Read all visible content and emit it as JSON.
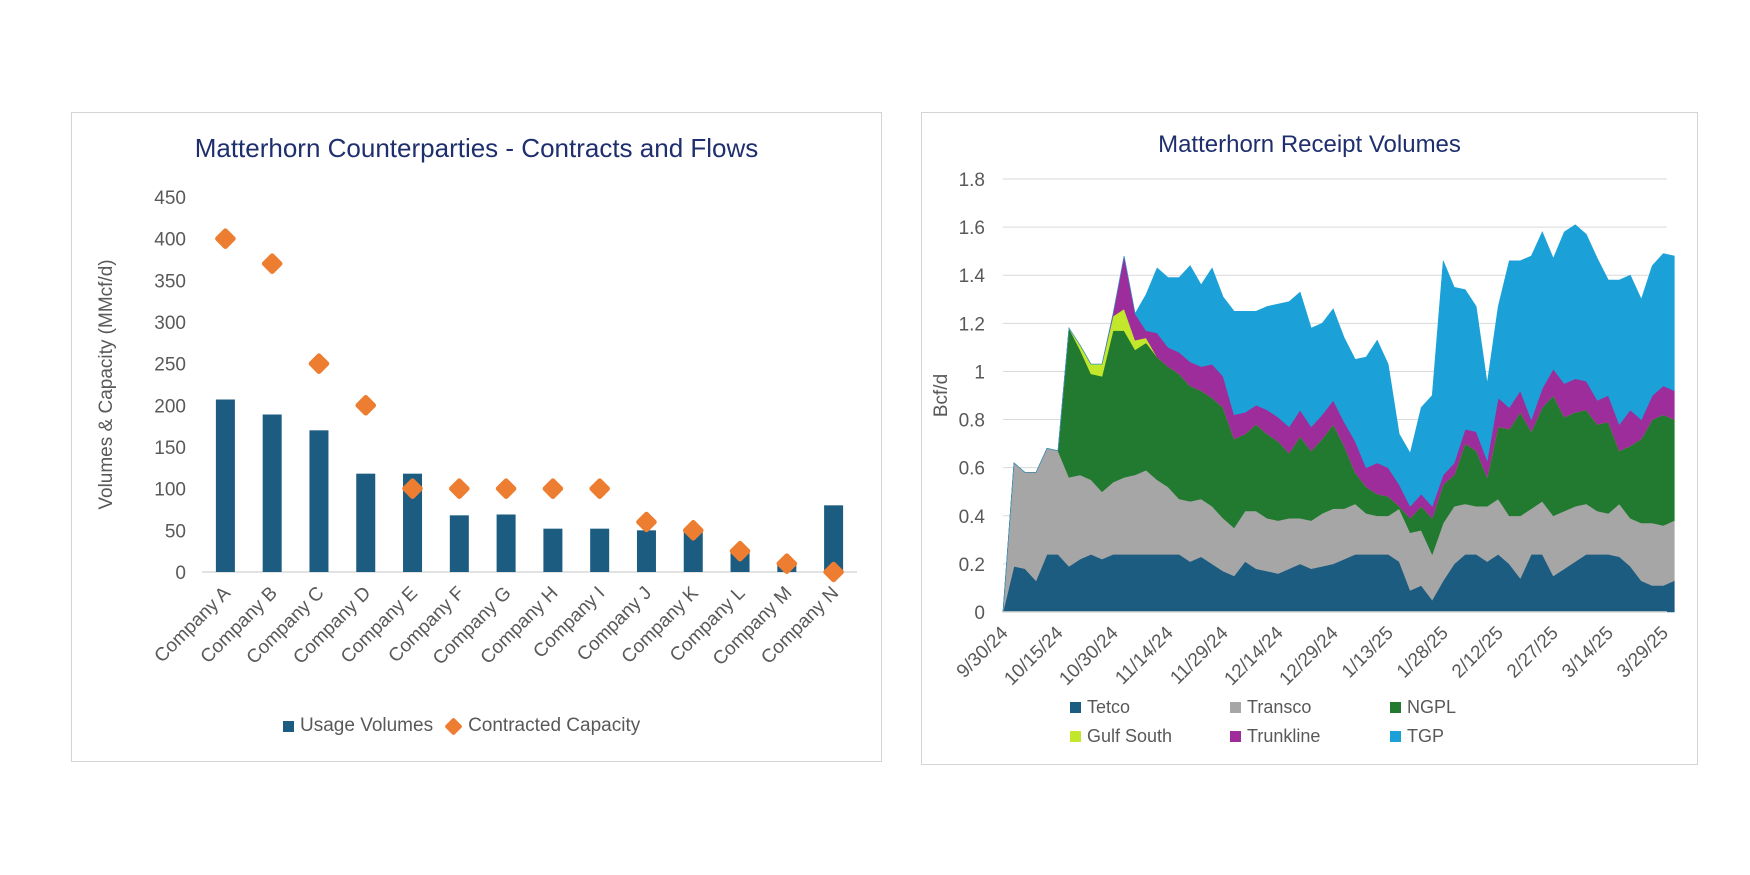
{
  "charts": {
    "left": {
      "title": "Matterhorn Counterparties - Contracts and Flows"
    },
    "right": {
      "title": "Matterhorn Receipt Volumes"
    }
  },
  "colors": {
    "usage": "#1b5c80",
    "contracted": "#ed7d31",
    "Tetco": "#1b5c80",
    "Transco": "#a6a6a6",
    "NGPL": "#217a2f",
    "Gulf South": "#c3e82b",
    "Trunkline": "#9c2d9b",
    "TGP": "#1ba1d8",
    "grid": "#d9d9d9",
    "title": "#1f2f6e"
  },
  "chart_data": [
    {
      "type": "bar",
      "title": "Matterhorn Counterparties - Contracts and Flows",
      "ylabel": "Volumes & Capacity  (MMcf/d)",
      "xlabel": "",
      "ylim": [
        0,
        450
      ],
      "yticks": [
        0,
        50,
        100,
        150,
        200,
        250,
        300,
        350,
        400,
        450
      ],
      "grid": false,
      "legend_position": "bottom",
      "categories": [
        "Company A",
        "Company B",
        "Company C",
        "Company D",
        "Company E",
        "Company F",
        "Company G",
        "Company H",
        "Company I",
        "Company J",
        "Company K",
        "Company L",
        "Company M",
        "Company N"
      ],
      "series": [
        {
          "name": "Usage Volumes",
          "kind": "bar",
          "values": [
            207,
            189,
            170,
            118,
            118,
            68,
            69,
            52,
            52,
            50,
            51,
            24,
            12,
            80
          ]
        },
        {
          "name": "Contracted Capacity",
          "kind": "marker-diamond",
          "values": [
            400,
            370,
            250,
            200,
            100,
            100,
            100,
            100,
            100,
            60,
            50,
            25,
            10,
            0
          ]
        }
      ]
    },
    {
      "type": "area",
      "stacked": true,
      "title": "Matterhorn Receipt Volumes",
      "ylabel": "Bcf/d",
      "xlabel": "",
      "ylim": [
        0,
        1.8
      ],
      "yticks": [
        "0",
        "0.2",
        "0.4",
        "0.6",
        "0.8",
        "1",
        "1.2",
        "1.4",
        "1.6",
        "1.8"
      ],
      "grid": true,
      "legend_position": "bottom",
      "x_tick_labels": [
        "9/30/24",
        "10/15/24",
        "10/30/24",
        "11/14/24",
        "11/29/24",
        "12/14/24",
        "12/29/24",
        "1/13/25",
        "1/28/25",
        "2/12/25",
        "2/27/25",
        "3/14/25",
        "3/29/25"
      ],
      "x_range": [
        "2024-09-30",
        "2025-03-30"
      ],
      "sample_interval_days": 3,
      "series": [
        {
          "name": "Tetco",
          "values": [
            0.0,
            0.19,
            0.18,
            0.13,
            0.24,
            0.24,
            0.19,
            0.22,
            0.24,
            0.22,
            0.24,
            0.24,
            0.24,
            0.24,
            0.24,
            0.24,
            0.24,
            0.21,
            0.23,
            0.2,
            0.17,
            0.15,
            0.21,
            0.18,
            0.17,
            0.16,
            0.18,
            0.2,
            0.18,
            0.19,
            0.2,
            0.22,
            0.24,
            0.24,
            0.24,
            0.24,
            0.21,
            0.09,
            0.11,
            0.05,
            0.13,
            0.2,
            0.24,
            0.24,
            0.21,
            0.24,
            0.2,
            0.14,
            0.24,
            0.24,
            0.15,
            0.18,
            0.21,
            0.24,
            0.24,
            0.24,
            0.23,
            0.19,
            0.13,
            0.11,
            0.11,
            0.13
          ]
        },
        {
          "name": "Transco",
          "values": [
            0.0,
            0.43,
            0.4,
            0.45,
            0.44,
            0.43,
            0.37,
            0.35,
            0.31,
            0.28,
            0.3,
            0.32,
            0.33,
            0.35,
            0.31,
            0.28,
            0.23,
            0.25,
            0.24,
            0.24,
            0.22,
            0.2,
            0.21,
            0.24,
            0.22,
            0.22,
            0.21,
            0.19,
            0.2,
            0.22,
            0.23,
            0.21,
            0.21,
            0.17,
            0.16,
            0.16,
            0.22,
            0.24,
            0.23,
            0.19,
            0.24,
            0.24,
            0.21,
            0.2,
            0.23,
            0.23,
            0.2,
            0.26,
            0.19,
            0.22,
            0.25,
            0.24,
            0.23,
            0.21,
            0.18,
            0.17,
            0.22,
            0.2,
            0.24,
            0.26,
            0.25,
            0.25
          ]
        },
        {
          "name": "NGPL",
          "values": [
            0.0,
            0.0,
            0.0,
            0.0,
            0.0,
            0.0,
            0.62,
            0.52,
            0.44,
            0.48,
            0.63,
            0.61,
            0.52,
            0.53,
            0.51,
            0.5,
            0.52,
            0.48,
            0.45,
            0.45,
            0.46,
            0.37,
            0.32,
            0.36,
            0.35,
            0.33,
            0.27,
            0.34,
            0.29,
            0.31,
            0.35,
            0.26,
            0.13,
            0.11,
            0.09,
            0.08,
            0.01,
            0.06,
            0.1,
            0.15,
            0.16,
            0.13,
            0.25,
            0.23,
            0.12,
            0.3,
            0.36,
            0.43,
            0.32,
            0.39,
            0.5,
            0.39,
            0.39,
            0.39,
            0.36,
            0.38,
            0.22,
            0.3,
            0.35,
            0.43,
            0.46,
            0.42
          ]
        },
        {
          "name": "Gulf South",
          "values": [
            0,
            0,
            0,
            0,
            0,
            0,
            0,
            0.02,
            0.04,
            0.05,
            0.06,
            0.09,
            0.04,
            0.02,
            0,
            0,
            0,
            0,
            0,
            0,
            0,
            0,
            0,
            0,
            0,
            0,
            0,
            0,
            0,
            0,
            0,
            0,
            0,
            0,
            0,
            0,
            0,
            0,
            0,
            0,
            0,
            0,
            0,
            0,
            0,
            0,
            0,
            0,
            0,
            0,
            0,
            0,
            0,
            0,
            0,
            0,
            0,
            0,
            0,
            0,
            0,
            0
          ]
        },
        {
          "name": "Trunkline",
          "values": [
            0,
            0,
            0,
            0,
            0,
            0,
            0,
            0,
            0,
            0,
            0.01,
            0.22,
            0.11,
            0.03,
            0.1,
            0.08,
            0.09,
            0.1,
            0.1,
            0.14,
            0.13,
            0.1,
            0.09,
            0.08,
            0.1,
            0.1,
            0.11,
            0.11,
            0.1,
            0.1,
            0.1,
            0.1,
            0.13,
            0.08,
            0.13,
            0.12,
            0.09,
            0.05,
            0.05,
            0.05,
            0.04,
            0.05,
            0.06,
            0.08,
            0.07,
            0.12,
            0.09,
            0.09,
            0.05,
            0.08,
            0.11,
            0.14,
            0.14,
            0.12,
            0.1,
            0.11,
            0.11,
            0.15,
            0.08,
            0.1,
            0.12,
            0.12
          ]
        },
        {
          "name": "TGP",
          "values": [
            0,
            0,
            0,
            0,
            0,
            0,
            0,
            0,
            0,
            0,
            0,
            0,
            0,
            0.15,
            0.27,
            0.29,
            0.31,
            0.4,
            0.34,
            0.4,
            0.33,
            0.43,
            0.42,
            0.39,
            0.43,
            0.47,
            0.52,
            0.49,
            0.41,
            0.38,
            0.38,
            0.35,
            0.34,
            0.46,
            0.51,
            0.43,
            0.21,
            0.22,
            0.36,
            0.46,
            0.89,
            0.73,
            0.58,
            0.52,
            0.32,
            0.38,
            0.61,
            0.54,
            0.68,
            0.65,
            0.46,
            0.63,
            0.64,
            0.61,
            0.59,
            0.48,
            0.6,
            0.56,
            0.5,
            0.54,
            0.55,
            0.56
          ]
        }
      ]
    }
  ]
}
